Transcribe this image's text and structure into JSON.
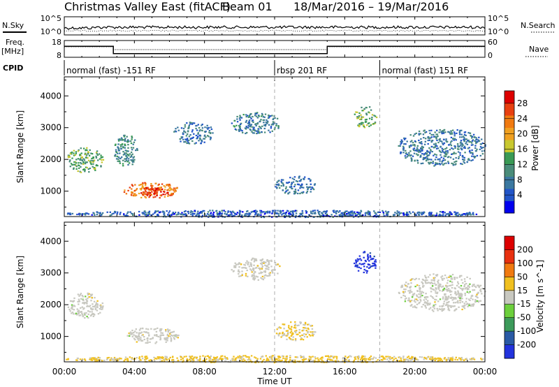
{
  "header": {
    "title": "Christmas Valley East (fitACF)",
    "beam": "Beam 01",
    "date_range": "18/Mar/2016 – 19/Mar/2016"
  },
  "left_labels": {
    "nsky": "N.Sky",
    "freq_line1": "Freq.",
    "freq_line2": "[MHz]",
    "cpid": "CPID"
  },
  "right_labels": {
    "nsearch": "N.Search",
    "nave": "Nave"
  },
  "noise_panel": {
    "y_ticks_left": [
      "10^5",
      "10^0"
    ],
    "y_ticks_right": [
      "10^5",
      "10^0"
    ]
  },
  "freq_panel": {
    "y_ticks_left": [
      "18",
      "8"
    ],
    "y_ticks_right": [
      "60",
      "0"
    ],
    "freq_steps": [
      {
        "t": 0.0,
        "f": 14.6
      },
      {
        "t": 2.8,
        "f": 14.6
      },
      {
        "t": 2.8,
        "f": 10.2
      },
      {
        "t": 15.0,
        "f": 10.2
      },
      {
        "t": 15.0,
        "f": 14.6
      },
      {
        "t": 24.0,
        "f": 14.6
      }
    ]
  },
  "cpid": [
    {
      "label": "normal (fast) -151 RF",
      "start": 0,
      "end": 12
    },
    {
      "label": "rbsp 201 RF",
      "start": 12,
      "end": 18
    },
    {
      "label": "normal (fast) 151 RF",
      "start": 18,
      "end": 24
    }
  ],
  "x_axis": {
    "label": "Time UT",
    "ticks": [
      "00:00",
      "04:00",
      "08:00",
      "12:00",
      "16:00",
      "20:00",
      "00:00"
    ],
    "range_hours": [
      0,
      24
    ]
  },
  "chart_data": [
    {
      "type": "heatmap",
      "panel": "power",
      "ylabel": "Slant Range [km]",
      "y_ticks": [
        1000,
        2000,
        3000,
        4000
      ],
      "ylim": [
        200,
        4600
      ],
      "colorbar": {
        "label": "Power [dB]",
        "ticks": [
          "4",
          "8",
          "12",
          "16",
          "20",
          "24",
          "28"
        ],
        "colors": [
          "#0000ee",
          "#2255c8",
          "#3b78a0",
          "#4a8c7a",
          "#3a9a55",
          "#c8c830",
          "#f0a020",
          "#f07a10",
          "#e84010",
          "#dd0000"
        ],
        "range": [
          0,
          30
        ]
      },
      "regions": [
        {
          "t0": 0.1,
          "t1": 2.2,
          "r0": 1600,
          "r1": 2400,
          "value": 13
        },
        {
          "t0": 2.8,
          "t1": 4.2,
          "r0": 1800,
          "r1": 2800,
          "value": 10
        },
        {
          "t0": 3.3,
          "t1": 6.5,
          "r0": 800,
          "r1": 1300,
          "value": 22
        },
        {
          "t0": 4.2,
          "t1": 5.9,
          "r0": 850,
          "r1": 1150,
          "value": 27
        },
        {
          "t0": 6.2,
          "t1": 8.5,
          "r0": 2500,
          "r1": 3200,
          "value": 7
        },
        {
          "t0": 9.5,
          "t1": 12.3,
          "r0": 2800,
          "r1": 3500,
          "value": 9
        },
        {
          "t0": 12.0,
          "t1": 14.3,
          "r0": 900,
          "r1": 1500,
          "value": 7
        },
        {
          "t0": 16.5,
          "t1": 17.8,
          "r0": 3000,
          "r1": 3700,
          "value": 14
        },
        {
          "t0": 19.0,
          "t1": 24.0,
          "r0": 1800,
          "r1": 3000,
          "value": 8
        },
        {
          "t0": 0.0,
          "t1": 24.0,
          "r0": 200,
          "r1": 420,
          "value": 6
        }
      ]
    },
    {
      "type": "heatmap",
      "panel": "velocity",
      "ylabel": "Slant Range [km]",
      "y_ticks": [
        1000,
        2000,
        3000,
        4000
      ],
      "ylim": [
        200,
        4600
      ],
      "colorbar": {
        "label": "Velocity [m s^-1]",
        "ticks": [
          "200",
          "100",
          "50",
          "15",
          "-15",
          "-50",
          "-100",
          "-200"
        ],
        "colors": [
          "#2233dd",
          "#2a5aa5",
          "#3c9a5a",
          "#6ccf3c",
          "#c8c8c0",
          "#f0c020",
          "#f07a10",
          "#e83010",
          "#dd0000"
        ],
        "range": [
          -250,
          250
        ]
      },
      "regions": [
        {
          "t0": 0.1,
          "t1": 2.2,
          "r0": 1600,
          "r1": 2400,
          "value": 0
        },
        {
          "t0": 3.3,
          "t1": 6.5,
          "r0": 800,
          "r1": 1300,
          "value": 0
        },
        {
          "t0": 9.5,
          "t1": 12.3,
          "r0": 2800,
          "r1": 3500,
          "value": 5
        },
        {
          "t0": 12.0,
          "t1": 14.3,
          "r0": 900,
          "r1": 1500,
          "value": 40
        },
        {
          "t0": 16.5,
          "t1": 17.8,
          "r0": 3000,
          "r1": 3700,
          "value": -220
        },
        {
          "t0": 19.0,
          "t1": 24.0,
          "r0": 1800,
          "r1": 3000,
          "value": 0
        },
        {
          "t0": 0.0,
          "t1": 24.0,
          "r0": 200,
          "r1": 420,
          "value": 40
        }
      ]
    }
  ]
}
